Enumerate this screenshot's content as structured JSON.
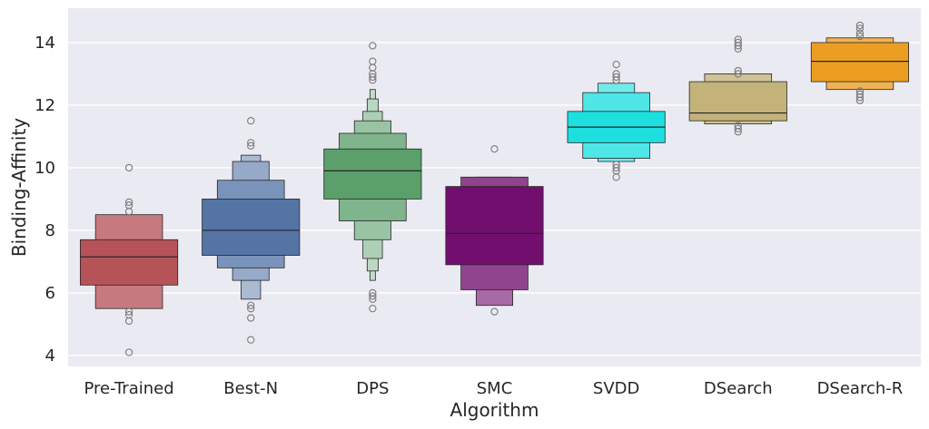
{
  "chart_data": {
    "type": "boxen",
    "title": "",
    "xlabel": "Algorithm",
    "ylabel": "Binding-Affinity",
    "ylim": [
      3.65,
      15.1
    ],
    "yticks": [
      4,
      6,
      8,
      10,
      12,
      14
    ],
    "ytick_labels": [
      "4",
      "6",
      "8",
      "10",
      "12",
      "14"
    ],
    "grid": true,
    "categories": [
      "Pre-Trained",
      "Best-N",
      "DPS",
      "SMC",
      "SVDD",
      "DSearch",
      "DSearch-R"
    ],
    "series": [
      {
        "name": "Pre-Trained",
        "color": "#b65359",
        "median": 7.15,
        "boxes": [
          [
            6.25,
            7.7
          ],
          [
            5.5,
            8.5
          ]
        ],
        "outliers": [
          4.1,
          5.1,
          5.3,
          5.4,
          8.6,
          8.8,
          8.9,
          10.0
        ]
      },
      {
        "name": "Best-N",
        "color": "#5574a6",
        "median": 8.0,
        "boxes": [
          [
            7.2,
            9.0
          ],
          [
            6.8,
            9.6
          ],
          [
            6.4,
            10.2
          ],
          [
            5.8,
            10.4
          ]
        ],
        "outliers": [
          4.5,
          5.2,
          5.5,
          5.6,
          10.7,
          10.8,
          11.5
        ]
      },
      {
        "name": "DPS",
        "color": "#5b9f6b",
        "median": 9.9,
        "boxes": [
          [
            9.0,
            10.6
          ],
          [
            8.3,
            11.1
          ],
          [
            7.7,
            11.5
          ],
          [
            7.1,
            11.8
          ],
          [
            6.7,
            12.2
          ],
          [
            6.4,
            12.5
          ]
        ],
        "outliers": [
          5.5,
          5.8,
          5.9,
          6.0,
          12.8,
          12.9,
          13.0,
          13.2,
          13.4,
          13.9
        ]
      },
      {
        "name": "SMC",
        "color": "#720f6e",
        "median": 7.9,
        "boxes": [
          [
            6.9,
            9.4
          ],
          [
            6.1,
            9.7
          ],
          [
            5.6,
            9.7
          ]
        ],
        "outliers": [
          5.4,
          10.6
        ]
      },
      {
        "name": "SVDD",
        "color": "#1ddfe0",
        "median": 11.3,
        "boxes": [
          [
            10.8,
            11.8
          ],
          [
            10.3,
            12.4
          ],
          [
            10.2,
            12.7
          ]
        ],
        "outliers": [
          9.7,
          9.9,
          10.0,
          10.1,
          12.8,
          12.9,
          13.0,
          13.3
        ]
      },
      {
        "name": "DSearch",
        "color": "#c3b27a",
        "median": 11.75,
        "boxes": [
          [
            11.5,
            12.75
          ],
          [
            11.4,
            13.0
          ]
        ],
        "outliers": [
          11.15,
          11.25,
          11.35,
          13.0,
          13.1,
          13.8,
          13.9,
          14.0,
          14.1
        ]
      },
      {
        "name": "DSearch-R",
        "color": "#ec9e22",
        "median": 13.4,
        "boxes": [
          [
            12.75,
            14.0
          ],
          [
            12.5,
            14.15
          ]
        ],
        "outliers": [
          12.15,
          12.25,
          12.35,
          12.45,
          14.2,
          14.3,
          14.45,
          14.55
        ]
      }
    ]
  }
}
